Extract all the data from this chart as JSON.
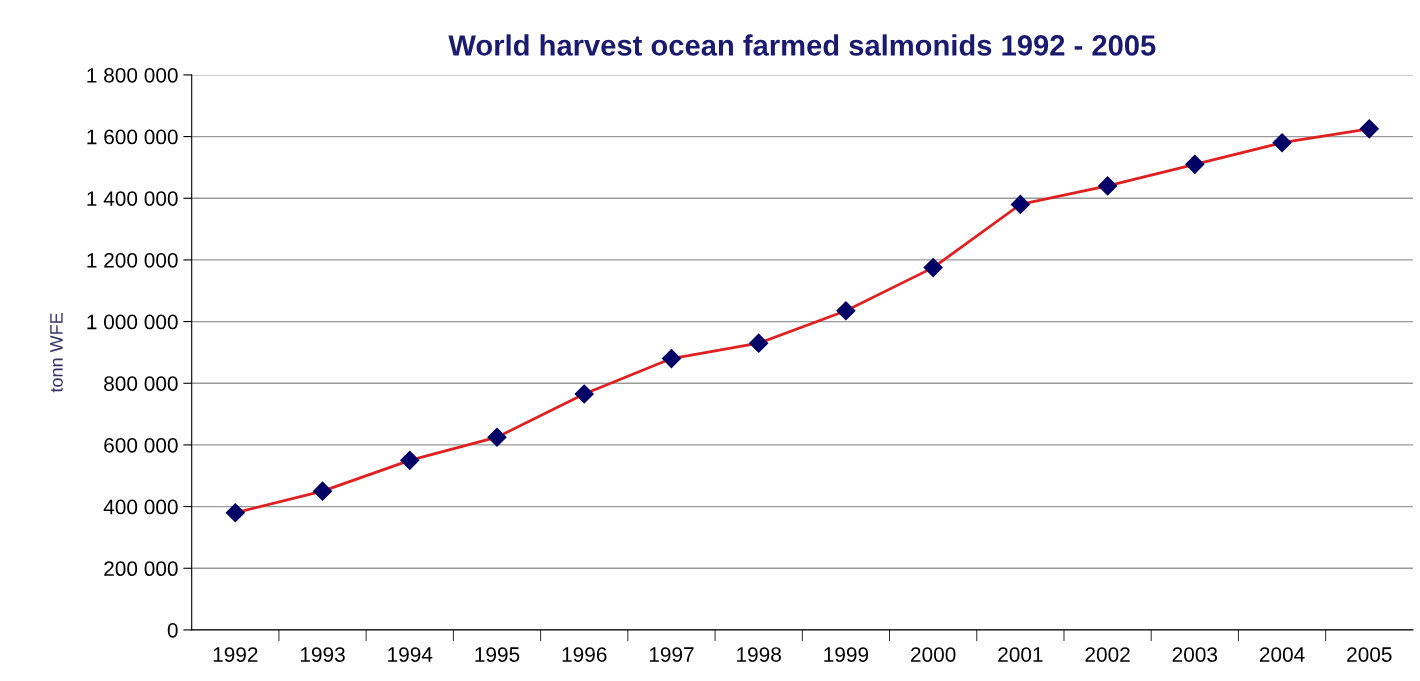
{
  "chart_data": {
    "type": "line",
    "title": "World harvest ocean farmed salmonids 1992 - 2005",
    "ylabel": "tonn WFE",
    "categories": [
      "1992",
      "1993",
      "1994",
      "1995",
      "1996",
      "1997",
      "1998",
      "1999",
      "2000",
      "2001",
      "2002",
      "2003",
      "2004",
      "2005"
    ],
    "series": [
      {
        "color": "#e02020",
        "values": [
          380000,
          450000,
          550000,
          625000,
          765000,
          880000,
          930000,
          1035000,
          1175000,
          1380000,
          1440000,
          1510000,
          1580000,
          1625000
        ]
      }
    ],
    "ylim": [
      0,
      1800000
    ],
    "yticks": [
      {
        "value": 0,
        "label": "0"
      },
      {
        "value": 200000,
        "label": "200 000"
      },
      {
        "value": 400000,
        "label": "400 000"
      },
      {
        "value": 600000,
        "label": "600 000"
      },
      {
        "value": 800000,
        "label": "800 000"
      },
      {
        "value": 1000000,
        "label": "1 000 000"
      },
      {
        "value": 1200000,
        "label": "1 200 000"
      },
      {
        "value": 1400000,
        "label": "1 400 000"
      },
      {
        "value": 1600000,
        "label": "1 600 000"
      },
      {
        "value": 1800000,
        "label": "1 800 000"
      }
    ],
    "grid": "y",
    "marker": "diamond",
    "line_style": "solid",
    "legend": false
  }
}
